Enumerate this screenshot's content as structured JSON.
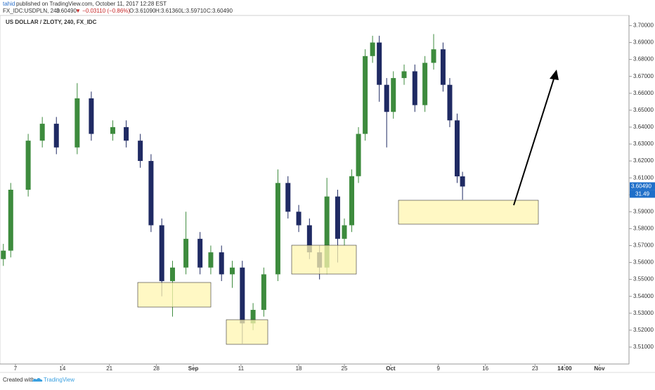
{
  "chart_data": {
    "type": "candlestick",
    "author": "tahid",
    "published": "published on TradingView.com, October 11, 2017 12:28 EST",
    "symbol": "FX_IDC:USDPLN, 240",
    "last": "3.60490",
    "change": "▼ −0.03110 (−0.86%)",
    "o_label": "O:3.61090",
    "h_label": "H:3.61360",
    "l_label": "L:3.59710",
    "c_label": "C:3.60490",
    "title": "US DOLLAR / ZLOTY, 240, FX_IDC",
    "price_tag": "3.60490",
    "countdown": "31.49",
    "footer": "Created with",
    "brand": "TradingView",
    "up_color": "#3d8b3d",
    "down_color": "#1f2a63",
    "x": [
      5.2,
      6.3,
      8.9,
      11.0,
      13.1,
      16.2,
      18.3,
      21.5,
      23.5,
      25.6,
      27.2,
      28.8,
      30.4,
      32.4,
      34.5,
      36.1,
      37.7,
      39.3,
      40.8,
      42.4,
      44.0,
      46.1,
      47.6,
      49.2,
      50.8,
      52.3,
      53.4,
      55.0,
      56.0,
      57.1,
      58.1,
      59.1,
      60.2,
      61.2,
      62.3,
      63.3,
      64.9,
      66.5,
      68.0,
      69.3,
      70.7,
      71.7,
      72.8,
      73.6
    ],
    "open": [
      3.562,
      3.567,
      3.603,
      3.632,
      3.642,
      3.628,
      3.657,
      3.636,
      3.64,
      3.632,
      3.62,
      3.582,
      3.549,
      3.557,
      3.574,
      3.557,
      3.566,
      3.553,
      3.557,
      3.524,
      3.532,
      3.553,
      3.607,
      3.59,
      3.582,
      3.566,
      3.557,
      3.599,
      3.574,
      3.582,
      3.611,
      3.636,
      3.682,
      3.69,
      3.665,
      3.649,
      3.669,
      3.673,
      3.653,
      3.678,
      3.686,
      3.665,
      3.644,
      3.6109
    ],
    "high": [
      3.571,
      3.607,
      3.636,
      3.646,
      3.646,
      3.666,
      3.661,
      3.644,
      3.644,
      3.636,
      3.624,
      3.586,
      3.561,
      3.59,
      3.578,
      3.57,
      3.57,
      3.561,
      3.561,
      3.536,
      3.557,
      3.615,
      3.611,
      3.594,
      3.586,
      3.57,
      3.61,
      3.603,
      3.586,
      3.615,
      3.64,
      3.686,
      3.694,
      3.694,
      3.669,
      3.673,
      3.677,
      3.677,
      3.682,
      3.695,
      3.69,
      3.669,
      3.648,
      3.6136
    ],
    "low": [
      3.558,
      3.563,
      3.599,
      3.628,
      3.624,
      3.624,
      3.632,
      3.632,
      3.628,
      3.616,
      3.578,
      3.54,
      3.528,
      3.553,
      3.553,
      3.553,
      3.549,
      3.545,
      3.512,
      3.52,
      3.528,
      3.549,
      3.586,
      3.578,
      3.562,
      3.55,
      3.553,
      3.56,
      3.57,
      3.578,
      3.607,
      3.632,
      3.678,
      3.655,
      3.628,
      3.645,
      3.665,
      3.649,
      3.649,
      3.674,
      3.661,
      3.64,
      3.607,
      3.5971
    ],
    "close": [
      3.567,
      3.603,
      3.632,
      3.642,
      3.628,
      3.657,
      3.636,
      3.64,
      3.632,
      3.62,
      3.582,
      3.549,
      3.557,
      3.574,
      3.557,
      3.566,
      3.553,
      3.557,
      3.524,
      3.532,
      3.553,
      3.607,
      3.59,
      3.582,
      3.566,
      3.557,
      3.599,
      3.574,
      3.582,
      3.611,
      3.636,
      3.682,
      3.69,
      3.665,
      3.649,
      3.669,
      3.673,
      3.653,
      3.678,
      3.686,
      3.665,
      3.644,
      3.6109,
      3.6049
    ],
    "xlim": [
      4.7,
      98.4
    ],
    "xticks": [
      {
        "value": 7,
        "label": "7"
      },
      {
        "value": 14,
        "label": "14"
      },
      {
        "value": 21,
        "label": "21"
      },
      {
        "value": 28,
        "label": "28"
      },
      {
        "value": 33.5,
        "label": "Sep"
      },
      {
        "value": 40.6,
        "label": "11"
      },
      {
        "value": 49.2,
        "label": "18"
      },
      {
        "value": 56,
        "label": "25"
      },
      {
        "value": 62.9,
        "label": "Oct"
      },
      {
        "value": 70,
        "label": "9"
      },
      {
        "value": 77,
        "label": "16"
      },
      {
        "value": 84.4,
        "label": "23"
      },
      {
        "value": 88.8,
        "label": "14:00"
      },
      {
        "value": 94,
        "label": "Nov"
      }
    ],
    "ylim": [
      3.5,
      3.706
    ],
    "yticks": [
      {
        "value": 3.51,
        "label": "3.51000"
      },
      {
        "value": 3.52,
        "label": "3.52000"
      },
      {
        "value": 3.53,
        "label": "3.53000"
      },
      {
        "value": 3.54,
        "label": "3.54000"
      },
      {
        "value": 3.55,
        "label": "3.55000"
      },
      {
        "value": 3.56,
        "label": "3.56000"
      },
      {
        "value": 3.57,
        "label": "3.57000"
      },
      {
        "value": 3.58,
        "label": "3.58000"
      },
      {
        "value": 3.59,
        "label": "3.59000"
      },
      {
        "value": 3.6,
        "label": "3.60000"
      },
      {
        "value": 3.61,
        "label": "3.61000"
      },
      {
        "value": 3.62,
        "label": "3.62000"
      },
      {
        "value": 3.63,
        "label": "3.63000"
      },
      {
        "value": 3.64,
        "label": "3.64000"
      },
      {
        "value": 3.65,
        "label": "3.65000"
      },
      {
        "value": 3.66,
        "label": "3.66000"
      },
      {
        "value": 3.67,
        "label": "3.67000"
      },
      {
        "value": 3.68,
        "label": "3.68000"
      },
      {
        "value": 3.69,
        "label": "3.69000"
      },
      {
        "value": 3.7,
        "label": "3.70000"
      }
    ]
  }
}
